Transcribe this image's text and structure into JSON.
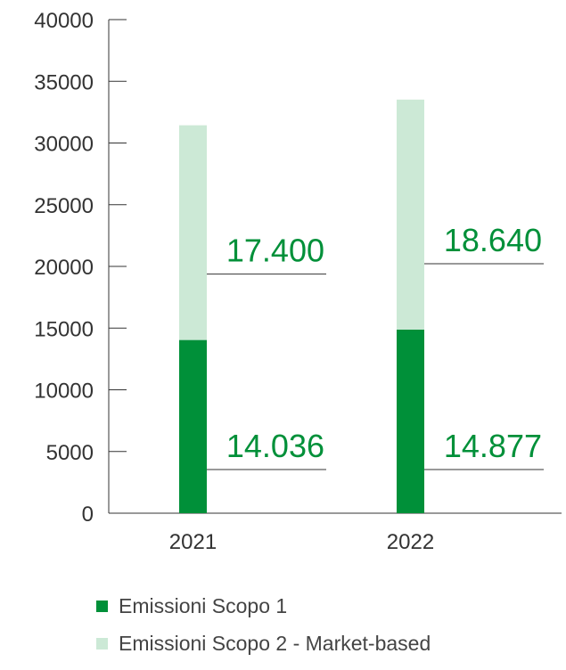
{
  "chart_data": {
    "type": "bar",
    "stacked": true,
    "categories": [
      "2021",
      "2022"
    ],
    "series": [
      {
        "name": "Emissioni Scopo 1",
        "values": [
          14036,
          14877
        ],
        "labels": [
          "14.036",
          "14.877"
        ],
        "color": "#009039"
      },
      {
        "name": "Emissioni Scopo 2 - Market-based",
        "values": [
          17400,
          18640
        ],
        "labels": [
          "17.400",
          "18.640"
        ],
        "color": "#cce9d6"
      }
    ],
    "y_ticks": [
      "0",
      "5000",
      "10000",
      "15000",
      "20000",
      "25000",
      "30000",
      "35000",
      "40000"
    ],
    "ylim": [
      0,
      40000
    ],
    "grid": false,
    "legend_position": "bottom",
    "label_color": "#009039",
    "axis_color": "#333333"
  }
}
